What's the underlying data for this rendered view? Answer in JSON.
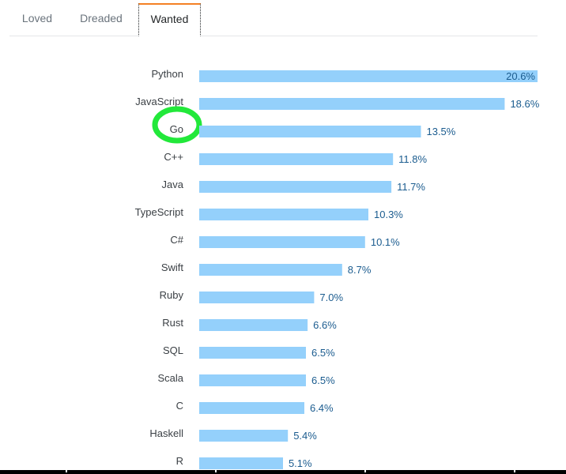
{
  "tabs": {
    "loved": "Loved",
    "dreaded": "Dreaded",
    "wanted": "Wanted"
  },
  "colors": {
    "bar": "#94d0fb",
    "value_text": "#1b5c8f",
    "highlight": "#22e83a",
    "active_tab_accent": "#f48024"
  },
  "chart_data": {
    "type": "bar",
    "orientation": "horizontal",
    "categories": [
      "Python",
      "JavaScript",
      "Go",
      "C++",
      "Java",
      "TypeScript",
      "C#",
      "Swift",
      "Ruby",
      "Rust",
      "SQL",
      "Scala",
      "C",
      "Haskell",
      "R"
    ],
    "values": [
      20.6,
      18.6,
      13.5,
      11.8,
      11.7,
      10.3,
      10.1,
      8.7,
      7.0,
      6.6,
      6.5,
      6.5,
      6.4,
      5.4,
      5.1
    ],
    "value_labels": [
      "20.6%",
      "18.6%",
      "13.5%",
      "11.8%",
      "11.7%",
      "10.3%",
      "10.1%",
      "8.7%",
      "7.0%",
      "6.6%",
      "6.5%",
      "6.5%",
      "6.4%",
      "5.4%",
      "5.1%"
    ],
    "highlighted_category": "Go",
    "title": "",
    "xlabel": "",
    "ylabel": "",
    "xlim": [
      0,
      20.6
    ],
    "grid": false,
    "legend": false
  }
}
